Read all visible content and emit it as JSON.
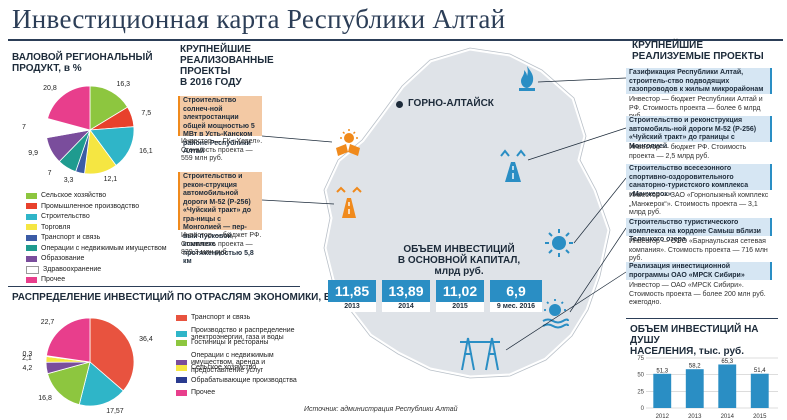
{
  "page": {
    "title": "Инвестиционная карта Республики Алтай",
    "source": "Источник: администрация Республики Алтай",
    "city_label": "ГОРНО-АЛТАЙСК"
  },
  "grp": {
    "heading_line1": "ВАЛОВОЙ РЕГИОНАЛЬНЫЙ",
    "heading_line2": "ПРОДУКТ, в %"
  },
  "projects2016": {
    "heading_line1": "КРУПНЕЙШИЕ",
    "heading_line2": "РЕАЛИЗОВАННЫЕ",
    "heading_line3": "ПРОЕКТЫ",
    "heading_line4": "В 2016 ГОДУ",
    "items": [
      {
        "title": "Строительство солнеч-ной электростанции общей мощностью 5 МВт в Усть-Канском районе Республики Алтай",
        "body": "Инвестор — ГК «Хевел». Стоимость проекта — 559 млн руб."
      },
      {
        "title": "Строительство и рекон-струкция автомобильной дороги М-52 (Р-256) «Чуйский тракт» до гра-ницы с Монголией — пер-вый пусковой комплекс протяженностью 5,8 км",
        "body": "Инвестор — бюджет РФ. Стоимость проекта — 829,3 млн руб."
      }
    ]
  },
  "investment_totals": {
    "heading_line1": "ОБЪЕМ ИНВЕСТИЦИЙ",
    "heading_line2": "В ОСНОВНОЙ КАПИТАЛ, млрд руб.",
    "items": [
      {
        "value": "11,85",
        "year": "2013"
      },
      {
        "value": "13,89",
        "year": "2014"
      },
      {
        "value": "11,02",
        "year": "2015"
      },
      {
        "value": "6,9",
        "year": "9 мес. 2016"
      }
    ]
  },
  "current_projects": {
    "heading_line1": "КРУПНЕЙШИЕ",
    "heading_line2": "РЕАЛИЗУЕМЫЕ ПРОЕКТЫ",
    "items": [
      {
        "title": "Газификация Республики Алтай, строитель-ство подводящих газопроводов к жилым микрорайонам",
        "body": "Инвестор — бюджет Республики Алтай и РФ. Стоимость проекта — более 6 млрд руб."
      },
      {
        "title": "Строительство и реконструкция автомобиль-ной дороги М-52 (Р-256) «Чуйский тракт» до границы с Монголией",
        "body": "Инвестор — бюджет РФ. Стоимость проекта — 2,5 млрд руб."
      },
      {
        "title": "Строительство всесезонного спортивно-оздоровительного санаторно-туристского комплекса «Манжерок»",
        "body": "Инвестор — ЗАО «Горнолыжный комплекс „Манжерок“». Стоимость проекта — 3,1 млрд руб."
      },
      {
        "title": "Строительство туристического комплекса на кордоне Самыш вблизи Телецкого озера",
        "body": "Инвестор — ООО «Барнаульская сетевая компания». Стоимость проекта — 716 млн руб."
      },
      {
        "title": "Реализация инвестиционной программы ОАО «МРСК Сибири»",
        "body": "Инвестор — ОАО «МРСК Сибири». Стоимость проекта — более 200 млн руб. ежегодно."
      }
    ]
  },
  "distribution": {
    "heading": "РАСПРЕДЕЛЕНИЕ ИНВЕСТИЦИЙ ПО ОТРАСЛЯМ ЭКОНОМИКИ, в %"
  },
  "per_capita": {
    "heading_line1": "ОБЪЕМ ИНВЕСТИЦИЙ НА ДУШУ",
    "heading_line2": "НАСЕЛЕНИЯ, тыс. руб."
  },
  "colors": {
    "navy": "#2c3e57",
    "blue": "#2a8ec4",
    "orange": "#f08a1c",
    "map_fill": "#dfe3e8",
    "project_box": "#f3c9a4",
    "current_box": "#d6e6f3"
  },
  "icons": [
    "gas-flame-icon",
    "solar-panel-icon",
    "road-icon",
    "sun-icon",
    "power-tower-icon",
    "hydro-sun-icon"
  ],
  "chart_data": [
    {
      "type": "pie",
      "title": "ВАЛОВОЙ РЕГИОНАЛЬНЫЙ ПРОДУКТ, в %",
      "labels": [
        "Сельское хозяйство",
        "Промышленное производство",
        "Строительство",
        "Торговля",
        "Транспорт и связь",
        "Операции с недвижимым имуществом",
        "Образование",
        "Здравоохранение",
        "Прочее"
      ],
      "values": [
        16.3,
        7.5,
        16.1,
        12.1,
        3.3,
        7,
        9.9,
        7,
        20.8
      ],
      "value_labels": [
        "16,3",
        "7,5",
        "16,1",
        "12,1",
        "3,3",
        "7",
        "9,9",
        "7",
        "20,8"
      ],
      "colors": [
        "#8dc63f",
        "#e8412c",
        "#2fb5c8",
        "#f5e642",
        "#3b5ba5",
        "#1f9b8f",
        "#7a4d9c",
        "#ffffff",
        "#e83e8c"
      ],
      "legend": "right"
    },
    {
      "type": "pie",
      "title": "РАСПРЕДЕЛЕНИЕ ИНВЕСТИЦИЙ ПО ОТРАСЛЯМ ЭКОНОМИКИ, в %",
      "labels": [
        "Транспорт и связь",
        "Производство и распределение электроэнергии, газа и воды",
        "Гостиницы и рестораны",
        "Операции с недвижимым имуществом, аренда и предоставление услуг",
        "Сельское хозяйство",
        "Обрабатывающие производства",
        "Прочее"
      ],
      "values": [
        36.4,
        17.57,
        16.8,
        4.2,
        2.1,
        0.3,
        22.7
      ],
      "value_labels": [
        "36,4",
        "17,57",
        "16,8",
        "4,2",
        "2,1",
        "0,3",
        "22,7"
      ],
      "colors": [
        "#e8533f",
        "#2fb5c8",
        "#8dc63f",
        "#7a4d9c",
        "#f5e642",
        "#2a3b8f",
        "#e83e8c"
      ],
      "legend": "right"
    },
    {
      "type": "bar",
      "title": "ОБЪЕМ ИНВЕСТИЦИЙ НА ДУШУ НАСЕЛЕНИЯ, тыс. руб.",
      "categories": [
        "2012",
        "2013",
        "2014",
        "2015"
      ],
      "values": [
        51.3,
        58.2,
        65.3,
        51.4
      ],
      "value_labels": [
        "51,3",
        "58,2",
        "65,3",
        "51,4"
      ],
      "ylim": [
        0,
        75
      ],
      "yticks": [
        "0",
        "25",
        "50",
        "75"
      ],
      "grid": true,
      "color": "#2a8ec4"
    }
  ]
}
